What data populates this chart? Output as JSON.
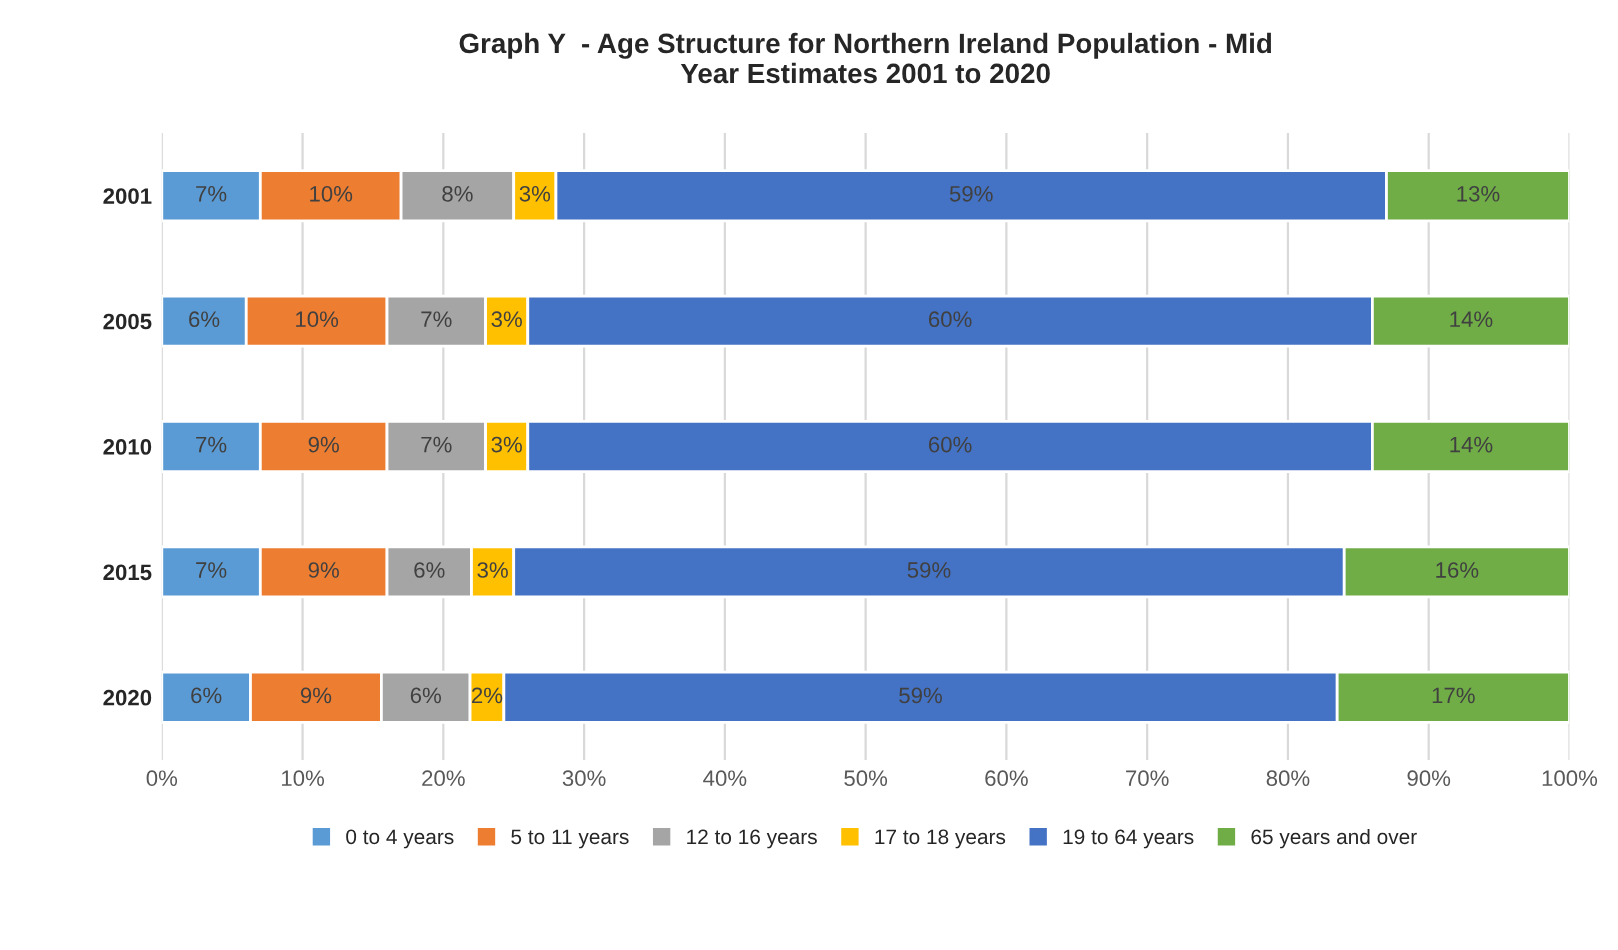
{
  "chart_data": {
    "type": "bar",
    "orientation": "horizontal",
    "stacked": true,
    "title": "Graph Y  - Age Structure for Northern Ireland Population - Mid\nYear Estimates 2001 to 2020",
    "categories": [
      "2001",
      "2005",
      "2010",
      "2015",
      "2020"
    ],
    "series": [
      {
        "name": "0 to 4 years",
        "color": "#5b9bd5",
        "values": [
          7,
          6,
          7,
          7,
          6.3
        ],
        "value_labels": [
          "7%",
          "6%",
          "7%",
          "7%",
          "6%"
        ]
      },
      {
        "name": "5 to 11 years",
        "color": "#ed7d31",
        "values": [
          10,
          10,
          9,
          9,
          9.3
        ],
        "value_labels": [
          "10%",
          "10%",
          "9%",
          "9%",
          "9%"
        ]
      },
      {
        "name": "12 to 16 years",
        "color": "#a5a5a5",
        "values": [
          8,
          7,
          7,
          6,
          6.3
        ],
        "value_labels": [
          "8%",
          "7%",
          "7%",
          "6%",
          "6%"
        ]
      },
      {
        "name": "17 to 18 years",
        "color": "#ffc000",
        "values": [
          3,
          3,
          3,
          3,
          2.4
        ],
        "value_labels": [
          "3%",
          "3%",
          "3%",
          "3%",
          "2%"
        ]
      },
      {
        "name": "19 to 64 years",
        "color": "#4472c4",
        "values": [
          59,
          60,
          60,
          59,
          59.2
        ],
        "value_labels": [
          "59%",
          "60%",
          "60%",
          "59%",
          "59%"
        ]
      },
      {
        "name": "65 years and over",
        "color": "#70ad47",
        "values": [
          13,
          14,
          14,
          16,
          16.5
        ],
        "value_labels": [
          "13%",
          "14%",
          "14%",
          "16%",
          "17%"
        ]
      }
    ],
    "xlim": [
      0,
      100
    ],
    "xticks": [
      {
        "value": 0,
        "label": "0%"
      },
      {
        "value": 10,
        "label": "10%"
      },
      {
        "value": 20,
        "label": "20%"
      },
      {
        "value": 30,
        "label": "30%"
      },
      {
        "value": 40,
        "label": "40%"
      },
      {
        "value": 50,
        "label": "50%"
      },
      {
        "value": 60,
        "label": "60%"
      },
      {
        "value": 70,
        "label": "70%"
      },
      {
        "value": 80,
        "label": "80%"
      },
      {
        "value": 90,
        "label": "90%"
      },
      {
        "value": 100,
        "label": "100%"
      }
    ],
    "grid": "x",
    "legend": "bottom"
  }
}
